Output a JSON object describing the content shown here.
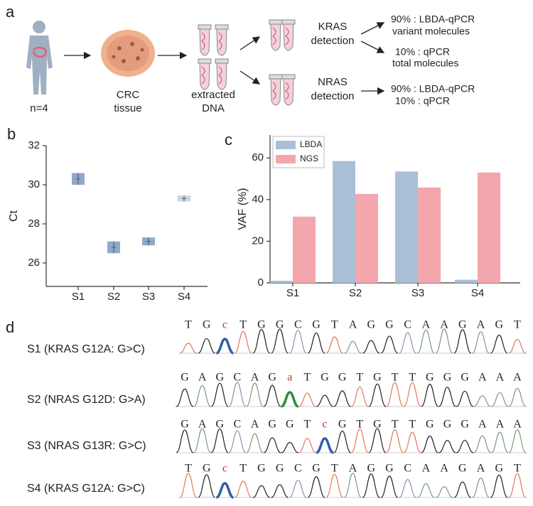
{
  "panel_a": {
    "letter": "a",
    "subject_label": "n=4",
    "tissue_label": [
      "CRC",
      "tissue"
    ],
    "dna_label": [
      "extracted",
      "DNA"
    ],
    "kras_label": [
      "KRAS",
      "detection"
    ],
    "nras_label": [
      "NRAS",
      "detection"
    ],
    "kras_out_1": [
      "90% : LBDA-qPCR",
      "variant molecules"
    ],
    "kras_out_2": [
      "10% : qPCR",
      "total molecules"
    ],
    "nras_out": [
      "90% : LBDA-qPCR",
      "10% : qPCR"
    ]
  },
  "chart_data": [
    {
      "type": "errorbar",
      "panel": "b",
      "ylabel": "Ct",
      "categories": [
        "S1",
        "S2",
        "S3",
        "S4"
      ],
      "values": [
        30.3,
        26.8,
        27.1,
        29.3
      ],
      "errors": [
        0.3,
        0.3,
        0.2,
        0.15
      ],
      "colors": [
        "#8fa9cc",
        "#8fa9cc",
        "#8fa9cc",
        "#c7d6e2"
      ],
      "ylim": [
        24.8,
        32
      ],
      "yticks": [
        26,
        28,
        30,
        32
      ]
    },
    {
      "type": "bar",
      "panel": "c",
      "ylabel": "VAF (%)",
      "categories": [
        "S1",
        "S2",
        "S3",
        "S4"
      ],
      "series": [
        {
          "name": "LBDA",
          "color": "#a9bfd6",
          "values": [
            1,
            58.5,
            53.5,
            1.5
          ]
        },
        {
          "name": "NGS",
          "color": "#f3a7ad",
          "values": [
            31.8,
            42.7,
            45.8,
            53
          ]
        }
      ],
      "ylim": [
        0,
        71
      ],
      "yticks": [
        0,
        20,
        40,
        60
      ],
      "legend": "upper left"
    }
  ],
  "panel_d": {
    "letter": "d",
    "rows": [
      {
        "label": "S1 (KRAS G12A: G>C)",
        "bases": [
          "T",
          "G",
          "c",
          "T",
          "G",
          "G",
          "C",
          "G",
          "T",
          "A",
          "G",
          "G",
          "C",
          "A",
          "A",
          "G",
          "A",
          "G",
          "T"
        ],
        "highlight_color": "#2f5fa6"
      },
      {
        "label": "S2 (NRAS G12D: G>A)",
        "bases": [
          "G",
          "A",
          "G",
          "C",
          "A",
          "G",
          "a",
          "T",
          "G",
          "G",
          "T",
          "G",
          "T",
          "T",
          "G",
          "G",
          "G",
          "A",
          "A",
          "A"
        ],
        "highlight_color": "#2e8b3a"
      },
      {
        "label": "S3 (NRAS G13R: G>C)",
        "bases": [
          "G",
          "A",
          "G",
          "C",
          "A",
          "G",
          "G",
          "T",
          "c",
          "G",
          "T",
          "G",
          "T",
          "T",
          "G",
          "G",
          "G",
          "A",
          "A",
          "A"
        ],
        "highlight_color": "#2f5fa6"
      },
      {
        "label": "S4 (KRAS G12A: G>C)",
        "bases": [
          "T",
          "G",
          "c",
          "T",
          "G",
          "G",
          "C",
          "G",
          "T",
          "A",
          "G",
          "G",
          "C",
          "A",
          "A",
          "G",
          "A",
          "G",
          "T"
        ],
        "highlight_color": "#2f5fa6"
      }
    ]
  }
}
